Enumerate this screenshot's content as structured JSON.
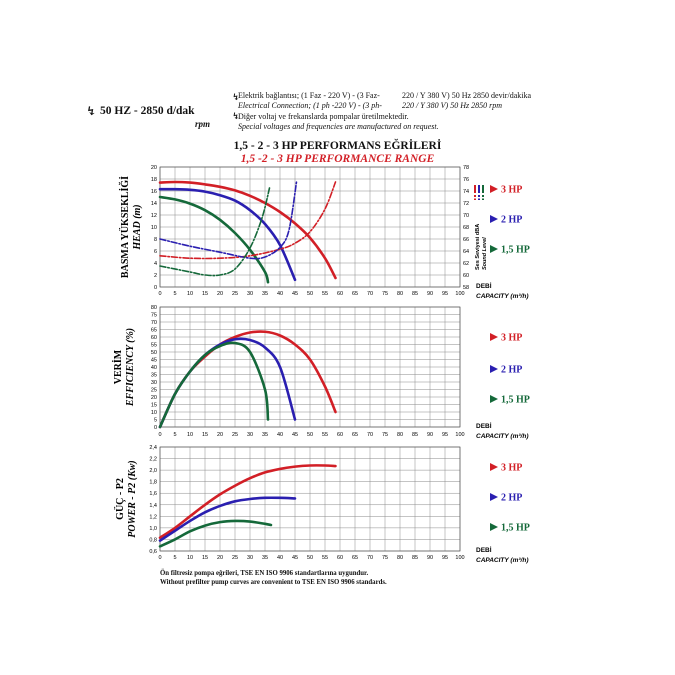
{
  "header": {
    "frequency": "50 HZ - 2850 d/dak",
    "rpm": "rpm",
    "notes": [
      {
        "text": "Elektrik bağlantısı; (1 Faz - 220 V) - (3 Faz-",
        "text2": "220 / Y 380 V) 50 Hz 2850 devir/dakika",
        "italic": false
      },
      {
        "text": "Electrical Connection; (1 ph -220 V) - (3 ph-",
        "text2": "220 / Y 380 V) 50 Hz 2850 rpm",
        "italic": true
      },
      {
        "text": "Diğer voltaj ve frekanslarda pompalar üretilmektedir.",
        "text2": "",
        "italic": false
      },
      {
        "text": "Special voltages and frequencies  are manufactured on request.",
        "text2": "",
        "italic": true
      }
    ]
  },
  "title": "1,5 - 2 - 3 HP PERFORMANS EĞRİLERİ",
  "subtitle": "1,5 -2 - 3 HP PERFORMANCE RANGE",
  "colors": {
    "hp3": "#d21f26",
    "hp2": "#2a1fb0",
    "hp15": "#15693a",
    "grid": "#8a8a8a"
  },
  "legend": [
    "3 HP",
    "2 HP",
    "1,5 HP"
  ],
  "x_axis": {
    "label_tr": "DEBİ",
    "label_en": "CAPACITY (m³/h)",
    "ticks": [
      "0",
      "5",
      "10",
      "15",
      "20",
      "25",
      "30",
      "35",
      "40",
      "45",
      "50",
      "55",
      "60",
      "65",
      "70",
      "75",
      "80",
      "85",
      "90",
      "95",
      "100"
    ]
  },
  "footer": [
    "Ön filtresiz pompa eğrileri, TSE EN ISO 9906 standartlarına uygundur.",
    "Without prefilter pump curves are convenient to TSE EN ISO 9906 standards."
  ],
  "chart_data": [
    {
      "type": "line",
      "ylabel_tr": "BASMA YÜKSEKLİĞİ",
      "ylabel_en": "HEAD (m)",
      "xlim": [
        0,
        100
      ],
      "ylim": [
        0,
        20
      ],
      "yticks": [
        "0",
        "2",
        "4",
        "6",
        "8",
        "10",
        "12",
        "14",
        "16",
        "18",
        "20"
      ],
      "y2label_tr": "Ses Seviyesi dBA",
      "y2label_en": "Sound Level",
      "y2lim": [
        58,
        78
      ],
      "y2ticks": [
        "58",
        "60",
        "62",
        "64",
        "66",
        "68",
        "70",
        "72",
        "74",
        "76",
        "78"
      ],
      "series": [
        {
          "name": "3 HP",
          "x": [
            0,
            5,
            10,
            15,
            20,
            25,
            30,
            35,
            40,
            45,
            50,
            55,
            58.5
          ],
          "y": [
            17.4,
            17.5,
            17.4,
            17.1,
            16.7,
            16.1,
            15.2,
            14.0,
            12.5,
            10.6,
            8.2,
            4.8,
            1.5
          ]
        },
        {
          "name": "2 HP",
          "x": [
            0,
            5,
            10,
            15,
            20,
            25,
            30,
            35,
            40,
            45
          ],
          "y": [
            16.3,
            16.3,
            16.2,
            15.9,
            15.3,
            14.4,
            12.8,
            10.5,
            7.0,
            1.2
          ]
        },
        {
          "name": "1,5 HP",
          "x": [
            0,
            5,
            10,
            15,
            20,
            25,
            30,
            35,
            36
          ],
          "y": [
            15.0,
            14.6,
            13.9,
            12.8,
            11.2,
            9.0,
            6.2,
            2.5,
            0.8
          ]
        },
        {
          "name": "3 HP",
          "axis": "y2",
          "dash": true,
          "x": [
            0,
            10,
            20,
            30,
            40,
            45,
            50,
            55,
            58.5
          ],
          "y": [
            63.2,
            62.8,
            62.8,
            63.2,
            64.3,
            65.3,
            67.2,
            71.0,
            75.5
          ]
        },
        {
          "name": "2 HP",
          "axis": "y2",
          "dash": true,
          "x": [
            0,
            10,
            20,
            30,
            35,
            40,
            43,
            45.5
          ],
          "y": [
            66.0,
            64.8,
            63.8,
            62.8,
            63.0,
            64.6,
            67.5,
            75.5
          ]
        },
        {
          "name": "1,5 HP",
          "axis": "y2",
          "dash": true,
          "x": [
            0,
            10,
            15,
            20,
            25,
            30,
            34,
            36.5
          ],
          "y": [
            61.5,
            60.5,
            60.0,
            60.0,
            61.0,
            64.5,
            69.5,
            74.5
          ]
        }
      ]
    },
    {
      "type": "line",
      "ylabel_tr": "VERİM",
      "ylabel_en": "EFFICIENCY (%)",
      "xlim": [
        0,
        100
      ],
      "ylim": [
        0,
        80
      ],
      "yticks": [
        "0",
        "5",
        "10",
        "15",
        "20",
        "25",
        "30",
        "35",
        "40",
        "45",
        "50",
        "55",
        "60",
        "65",
        "70",
        "75",
        "80"
      ],
      "series": [
        {
          "name": "3 HP",
          "x": [
            0,
            5,
            10,
            15,
            20,
            25,
            30,
            35,
            40,
            45,
            50,
            55,
            58.5
          ],
          "y": [
            0,
            22,
            37,
            47,
            55,
            60,
            63,
            63.5,
            61,
            55,
            45,
            27,
            10
          ]
        },
        {
          "name": "2 HP",
          "x": [
            0,
            5,
            10,
            15,
            20,
            25,
            30,
            35,
            40,
            45
          ],
          "y": [
            0,
            22,
            37,
            48,
            55,
            58.5,
            58,
            53,
            40,
            5
          ]
        },
        {
          "name": "1,5 HP",
          "x": [
            0,
            5,
            10,
            15,
            20,
            25,
            30,
            35,
            36
          ],
          "y": [
            0,
            22,
            37,
            48,
            54,
            56,
            50,
            25,
            5
          ]
        }
      ]
    },
    {
      "type": "line",
      "ylabel_tr": "GÜÇ - P2",
      "ylabel_en": "POWER - P2 (Kw)",
      "xlim": [
        0,
        100
      ],
      "ylim": [
        0.6,
        2.4
      ],
      "yticks": [
        "0,6",
        "0,8",
        "1,0",
        "1,2",
        "1,4",
        "1,6",
        "1,8",
        "2,0",
        "2,2",
        "2,4"
      ],
      "series": [
        {
          "name": "3 HP",
          "x": [
            0,
            5,
            10,
            15,
            20,
            25,
            30,
            35,
            40,
            45,
            50,
            55,
            58.5
          ],
          "y": [
            0.83,
            1.0,
            1.2,
            1.4,
            1.58,
            1.73,
            1.86,
            1.96,
            2.02,
            2.06,
            2.08,
            2.08,
            2.07
          ]
        },
        {
          "name": "2 HP",
          "x": [
            0,
            5,
            10,
            15,
            20,
            25,
            30,
            35,
            40,
            45
          ],
          "y": [
            0.78,
            0.95,
            1.12,
            1.27,
            1.38,
            1.46,
            1.5,
            1.52,
            1.52,
            1.51
          ]
        },
        {
          "name": "1,5 HP",
          "x": [
            0,
            5,
            10,
            15,
            20,
            25,
            30,
            35,
            37
          ],
          "y": [
            0.68,
            0.8,
            0.94,
            1.04,
            1.1,
            1.12,
            1.11,
            1.07,
            1.05
          ]
        }
      ]
    }
  ]
}
